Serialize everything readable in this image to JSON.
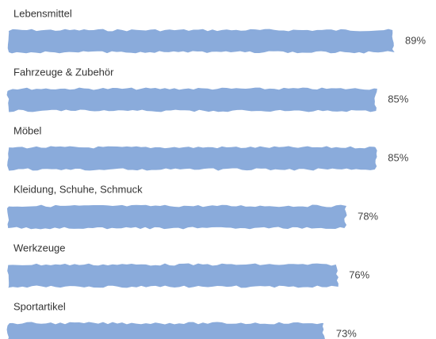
{
  "chart_data": {
    "type": "bar",
    "orientation": "horizontal",
    "categories": [
      "Lebensmittel",
      "Fahrzeuge & Zubehör",
      "Möbel",
      "Kleidung, Schuhe, Schmuck",
      "Werkzeuge",
      "Sportartikel"
    ],
    "values": [
      89,
      85,
      85,
      78,
      76,
      73
    ],
    "value_labels": [
      "89%",
      "85%",
      "85%",
      "78%",
      "76%",
      "73%"
    ],
    "color": "#8aabdb"
  }
}
